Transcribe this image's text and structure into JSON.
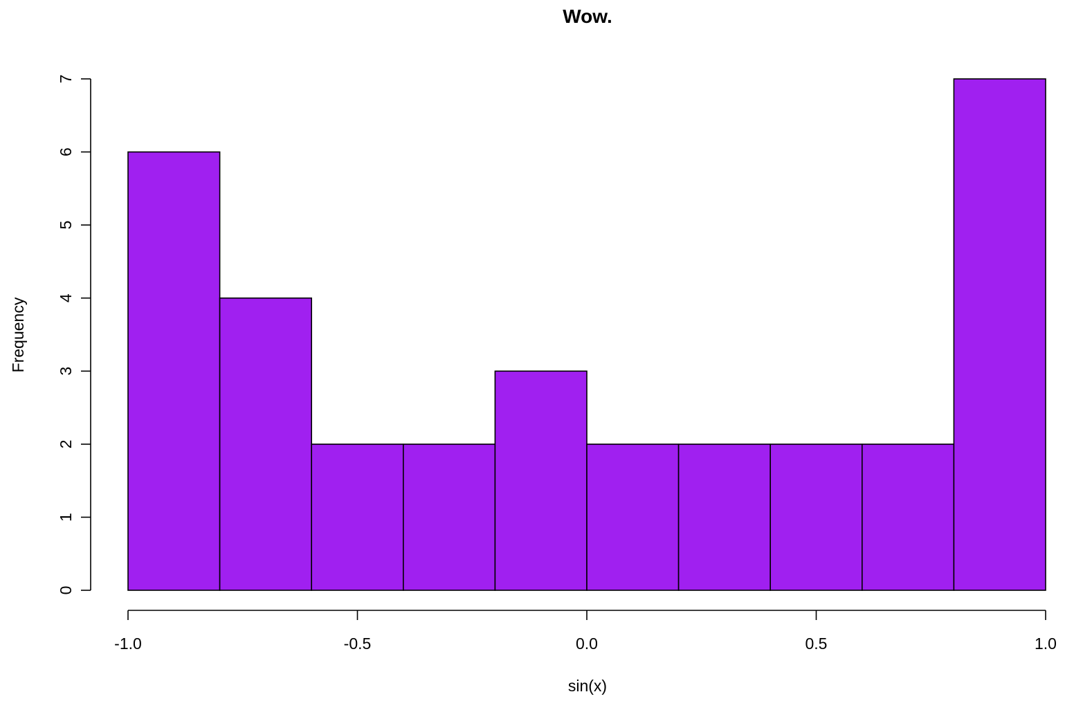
{
  "chart_data": {
    "type": "bar",
    "subtype": "histogram",
    "title": "Wow.",
    "xlabel": "sin(x)",
    "ylabel": "Frequency",
    "bins": [
      {
        "start": -1.0,
        "end": -0.8,
        "count": 6
      },
      {
        "start": -0.8,
        "end": -0.6,
        "count": 4
      },
      {
        "start": -0.6,
        "end": -0.4,
        "count": 2
      },
      {
        "start": -0.4,
        "end": -0.2,
        "count": 2
      },
      {
        "start": -0.2,
        "end": 0.0,
        "count": 3
      },
      {
        "start": 0.0,
        "end": 0.2,
        "count": 2
      },
      {
        "start": 0.2,
        "end": 0.4,
        "count": 2
      },
      {
        "start": 0.4,
        "end": 0.6,
        "count": 2
      },
      {
        "start": 0.6,
        "end": 0.8,
        "count": 2
      },
      {
        "start": 0.8,
        "end": 1.0,
        "count": 7
      }
    ],
    "xlim": [
      -1.0,
      1.0
    ],
    "ylim": [
      0,
      7
    ],
    "x_ticks": [
      {
        "value": -1.0,
        "label": "-1.0"
      },
      {
        "value": -0.5,
        "label": "-0.5"
      },
      {
        "value": 0.0,
        "label": "0.0"
      },
      {
        "value": 0.5,
        "label": "0.5"
      },
      {
        "value": 1.0,
        "label": "1.0"
      }
    ],
    "y_ticks": [
      {
        "value": 0,
        "label": "0"
      },
      {
        "value": 1,
        "label": "1"
      },
      {
        "value": 2,
        "label": "2"
      },
      {
        "value": 3,
        "label": "3"
      },
      {
        "value": 4,
        "label": "4"
      },
      {
        "value": 5,
        "label": "5"
      },
      {
        "value": 6,
        "label": "6"
      },
      {
        "value": 7,
        "label": "7"
      }
    ],
    "bar_color": "#a020f0",
    "border_color": "#000000",
    "grid": false,
    "legend": "none"
  }
}
